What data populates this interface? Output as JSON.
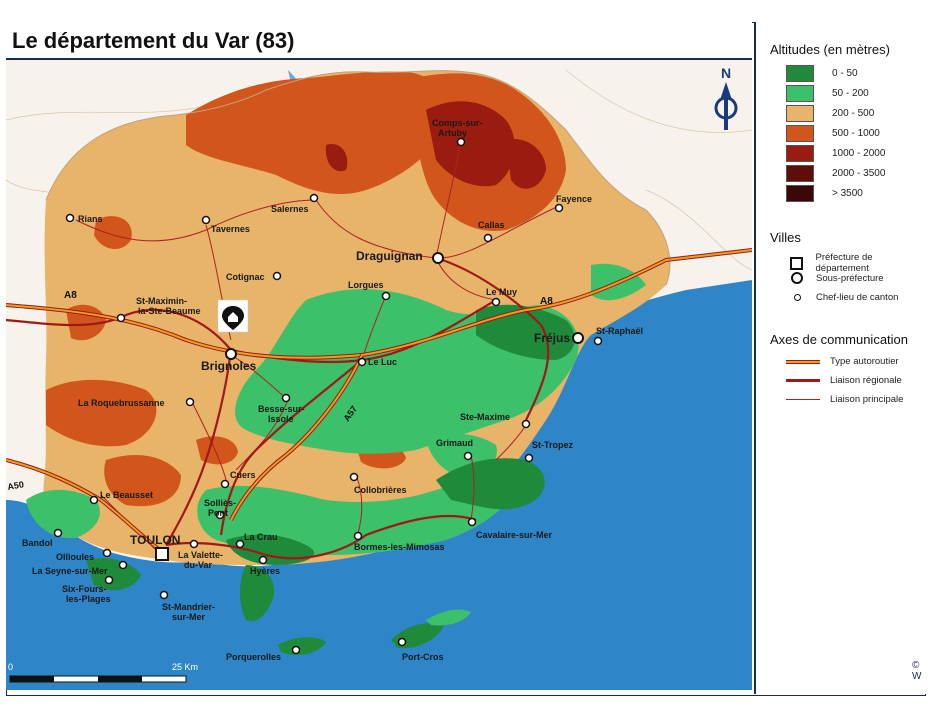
{
  "title": "Le département du Var (83)",
  "legend": {
    "altitudes_title": "Altitudes (en mètres)",
    "altitudes": [
      {
        "label": "0 - 50",
        "color": "#1f8a3a"
      },
      {
        "label": "50 - 200",
        "color": "#3cc06a"
      },
      {
        "label": "200 - 500",
        "color": "#e7b46a"
      },
      {
        "label": "500 - 1000",
        "color": "#d2561c"
      },
      {
        "label": "1000 - 2000",
        "color": "#9a1c10"
      },
      {
        "label": "2000 - 3500",
        "color": "#5e0d08"
      },
      {
        "label": "> 3500",
        "color": "#3a0806"
      }
    ],
    "villes_title": "Villes",
    "villes": [
      {
        "label": "Préfecture de département"
      },
      {
        "label": "Sous-préfecture"
      },
      {
        "label": "Chef-lieu de canton"
      }
    ],
    "axes_title": "Axes de communication",
    "axes": [
      {
        "label": "Type autoroutier",
        "color": "#e8a020"
      },
      {
        "label": "Liaison régionale",
        "color": "#a01818"
      },
      {
        "label": "Liaison principale",
        "color": "#b02020"
      }
    ]
  },
  "compass_label": "N",
  "scale": {
    "start": "0",
    "end": "25 Km"
  },
  "roads": {
    "a8_west": "A8",
    "a8_east": "A8",
    "a57": "A57",
    "a50": "A50"
  },
  "cities": {
    "toulon": "TOULON",
    "draguignan": "Draguignan",
    "brignoles": "Brignoles",
    "frejus": "Fréjus",
    "rians": "Rians",
    "tavernes": "Tavernes",
    "salernes": "Salernes",
    "comps": "Comps-sur-\nArtuby",
    "callas": "Callas",
    "fayence": "Fayence",
    "cotignac": "Cotignac",
    "lorgues": "Lorgues",
    "le_muy": "Le Muy",
    "st_maximin": "St-Maximin-\nla-Ste-Beaume",
    "le_luc": "Le Luc",
    "st_raphael": "St-Raphaël",
    "la_roquebrussanne": "La Roquebrussanne",
    "besse": "Besse-sur-\nIssole",
    "ste_maxime": "Ste-Maxime",
    "grimaud": "Grimaud",
    "st_tropez": "St-Tropez",
    "cuers": "Cuers",
    "collobrieres": "Collobrières",
    "le_beausset": "Le Beausset",
    "sollies": "Solliès-\nPont",
    "la_crau": "La Crau",
    "cavalaire": "Cavalaire-sur-Mer",
    "bormes": "Bormes-les-Mimosas",
    "bandol": "Bandol",
    "ollioules": "Ollioules",
    "la_valette": "La Valette-\ndu-Var",
    "hyeres": "Hyères",
    "la_seyne": "La Seyne-sur-Mer",
    "six_fours": "Six-Fours-\nles-Plages",
    "st_mandrier": "St-Mandrier-\nsur-Mer",
    "porquerolles": "Porquerolles",
    "port_cros": "Port-Cros"
  },
  "copyright": "©\nW"
}
